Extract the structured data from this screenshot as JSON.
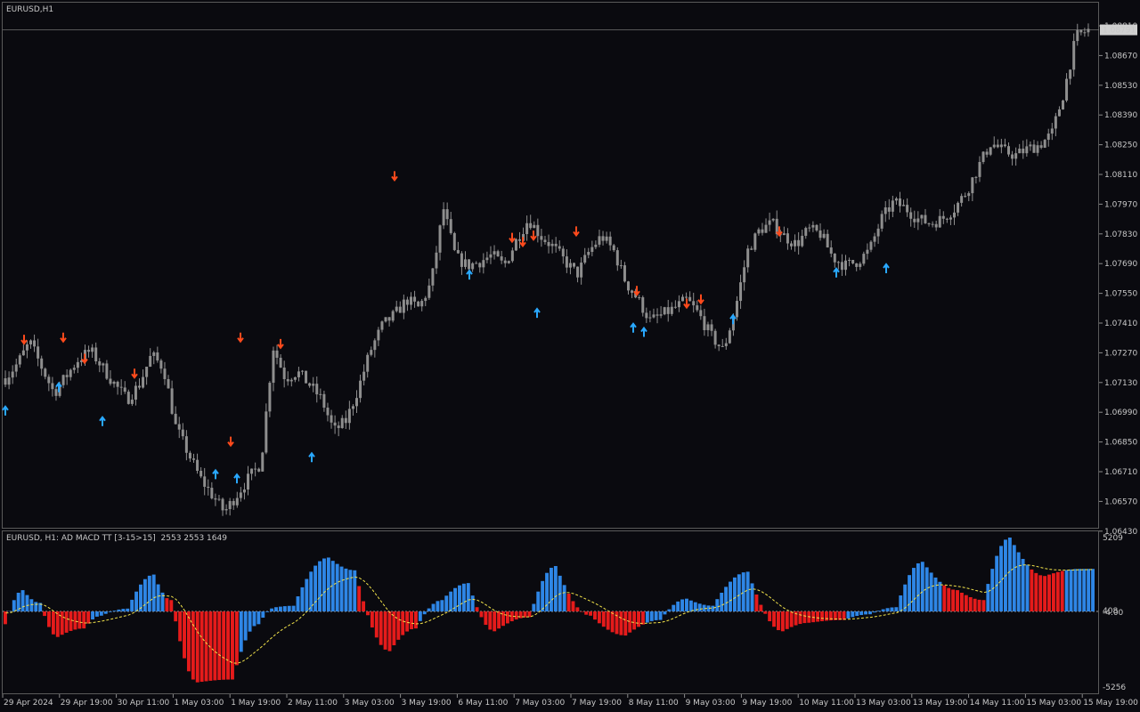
{
  "main": {
    "symbol_label": "EURUSD,H1",
    "price_ticks": [
      "1.08810",
      "1.08670",
      "1.08530",
      "1.08390",
      "1.08250",
      "1.08110",
      "1.07970",
      "1.07830",
      "1.07690",
      "1.07550",
      "1.07410",
      "1.07270",
      "1.07130",
      "1.06990",
      "1.06850",
      "1.06710",
      "1.06570",
      "1.06430"
    ],
    "current_price": "1.08791"
  },
  "indicator": {
    "label": "EURUSD, H1: AD MACD TT [3-15>15]",
    "values": "2553 2553 1649",
    "ticks": [
      "5209",
      "408",
      "-4.00",
      "-5256"
    ]
  },
  "time_axis": {
    "ticks": [
      "29 Apr 2024",
      "29 Apr 19:00",
      "30 Apr 11:00",
      "1 May 03:00",
      "1 May 19:00",
      "2 May 11:00",
      "3 May 03:00",
      "3 May 19:00",
      "6 May 11:00",
      "7 May 03:00",
      "7 May 19:00",
      "8 May 11:00",
      "9 May 03:00",
      "9 May 19:00",
      "10 May 11:00",
      "13 May 03:00",
      "13 May 19:00",
      "14 May 11:00",
      "15 May 03:00",
      "15 May 19:00"
    ]
  },
  "colors": {
    "background": "#0a0a0f",
    "candle": "#8e8e8e",
    "up_arrow": "#29a8ff",
    "down_arrow": "#ff4a1c",
    "hist_blue": "#2e86e6",
    "hist_red": "#e51b1b",
    "signal_line": "#f2e34a"
  },
  "chart_data": {
    "type": "candlestick",
    "close_path": [
      1.0715,
      1.0722,
      1.0732,
      1.072,
      1.0708,
      1.0716,
      1.0724,
      1.0728,
      1.072,
      1.0712,
      1.0705,
      1.0712,
      1.0726,
      1.072,
      1.0692,
      1.068,
      1.0668,
      1.066,
      1.0652,
      1.066,
      1.0668,
      1.0675,
      1.073,
      1.0715,
      1.0718,
      1.0712,
      1.0705,
      1.069,
      1.0695,
      1.071,
      1.0728,
      1.074,
      1.0745,
      1.0752,
      1.0748,
      1.076,
      1.0795,
      1.0772,
      1.0768,
      1.077,
      1.0773,
      1.0768,
      1.078,
      1.079,
      1.0782,
      1.0777,
      1.077,
      1.0764,
      1.0775,
      1.0782,
      1.0775,
      1.076,
      1.0752,
      1.0742,
      1.0745,
      1.0748,
      1.0752,
      1.0745,
      1.0735,
      1.0728,
      1.0748,
      1.0775,
      1.0785,
      1.0788,
      1.0782,
      1.0778,
      1.0785,
      1.0783,
      1.0772,
      1.0768,
      1.077,
      1.0775,
      1.079,
      1.0798,
      1.0795,
      1.079,
      1.0788,
      1.079,
      1.0795,
      1.0803,
      1.0815,
      1.0826,
      1.0822,
      1.082,
      1.0823,
      1.0825,
      1.083,
      1.085,
      1.0876,
      1.0879
    ]
  }
}
